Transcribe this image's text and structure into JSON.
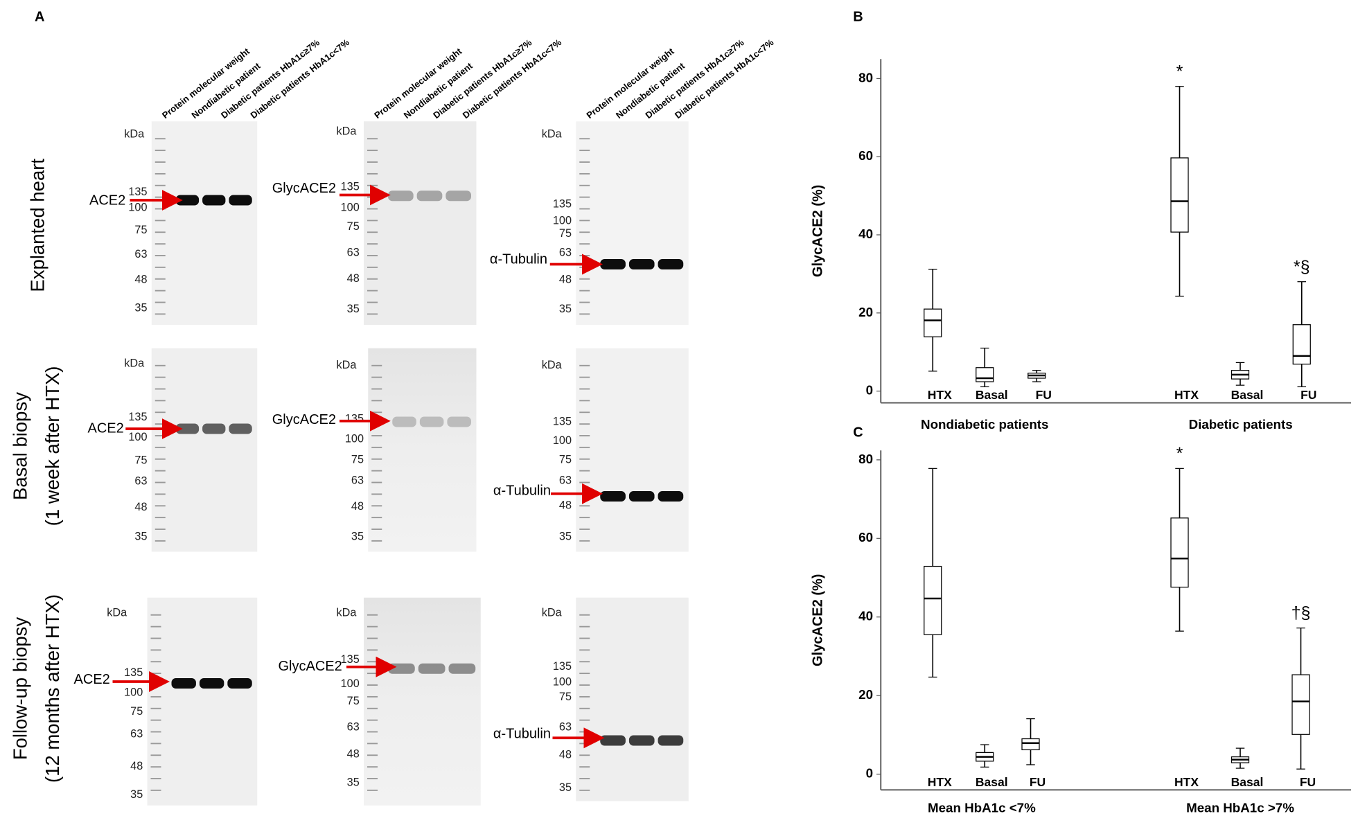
{
  "panel_a": {
    "label": "A",
    "lanes": [
      "Protein molecular weight",
      "Nondiabetic patient",
      "Diabetic patients HbA1c≥7%",
      "Diabetic patients HbA1c<7%"
    ],
    "kda": "kDa",
    "ladder": [
      "135",
      "100",
      "75",
      "63",
      "48",
      "35"
    ],
    "proteins": [
      "ACE2",
      "GlycACE2",
      "α-Tubulin"
    ],
    "rows": [
      [
        "Explanted heart"
      ],
      [
        "Basal biopsy",
        "(1 week after HTX)"
      ],
      [
        "Follow-up biopsy",
        "(12 months after HTX)"
      ]
    ]
  },
  "chart_data": [
    {
      "type": "box",
      "panel": "B",
      "y_label": "GlycACE2 (%)",
      "categories": [
        "HTX",
        "Basal",
        "FU"
      ],
      "ylim": [
        -3,
        85
      ],
      "yticks": [
        0,
        20,
        40,
        60,
        80
      ],
      "box_fill": "#ffffff",
      "line_color": "#000000",
      "series": [
        {
          "name": "Nondiabetic patients",
          "min": [
            5.1,
            1.1,
            2.4
          ],
          "q1": [
            13.9,
            2.4,
            3.3
          ],
          "median": [
            18.1,
            3.3,
            4
          ],
          "q3": [
            21,
            6,
            4.6
          ],
          "max": [
            31.2,
            11,
            5.3
          ],
          "annotations": []
        },
        {
          "name": "Diabetic patients",
          "min": [
            24.3,
            1.5,
            1.1
          ],
          "q1": [
            40.7,
            3.1,
            6.9
          ],
          "median": [
            48.6,
            4.2,
            9
          ],
          "q3": [
            59.7,
            5.3,
            17
          ],
          "max": [
            78,
            7.3,
            28
          ],
          "annotations": [
            {
              "index": 0,
              "text": "*"
            },
            {
              "index": 2,
              "text": "*§"
            }
          ]
        }
      ]
    },
    {
      "type": "box",
      "panel": "C",
      "y_label": "GlycACE2 (%)",
      "categories": [
        "HTX",
        "Basal",
        "FU"
      ],
      "ylim": [
        -4,
        82.4
      ],
      "yticks": [
        0,
        20,
        40,
        60,
        80
      ],
      "box_fill": "#ffffff",
      "line_color": "#000000",
      "series": [
        {
          "name": "Mean HbA1c <7%",
          "min": [
            24.7,
            1.8,
            2.4
          ],
          "q1": [
            35.5,
            3.3,
            6.2
          ],
          "median": [
            44.7,
            4.4,
            7.9
          ],
          "q3": [
            52.9,
            5.5,
            9
          ],
          "max": [
            77.8,
            7.5,
            14.1
          ],
          "annotations": []
        },
        {
          "name": "Mean HbA1c >7%",
          "min": [
            36.4,
            1.5,
            1.3
          ],
          "q1": [
            47.6,
            2.9,
            10.1
          ],
          "median": [
            54.9,
            3.7,
            18.5
          ],
          "q3": [
            65.2,
            4.4,
            25.3
          ],
          "max": [
            77.8,
            6.6,
            37.2
          ],
          "annotations": [
            {
              "index": 0,
              "text": "*"
            },
            {
              "index": 2,
              "text": "†§"
            }
          ]
        }
      ]
    }
  ]
}
